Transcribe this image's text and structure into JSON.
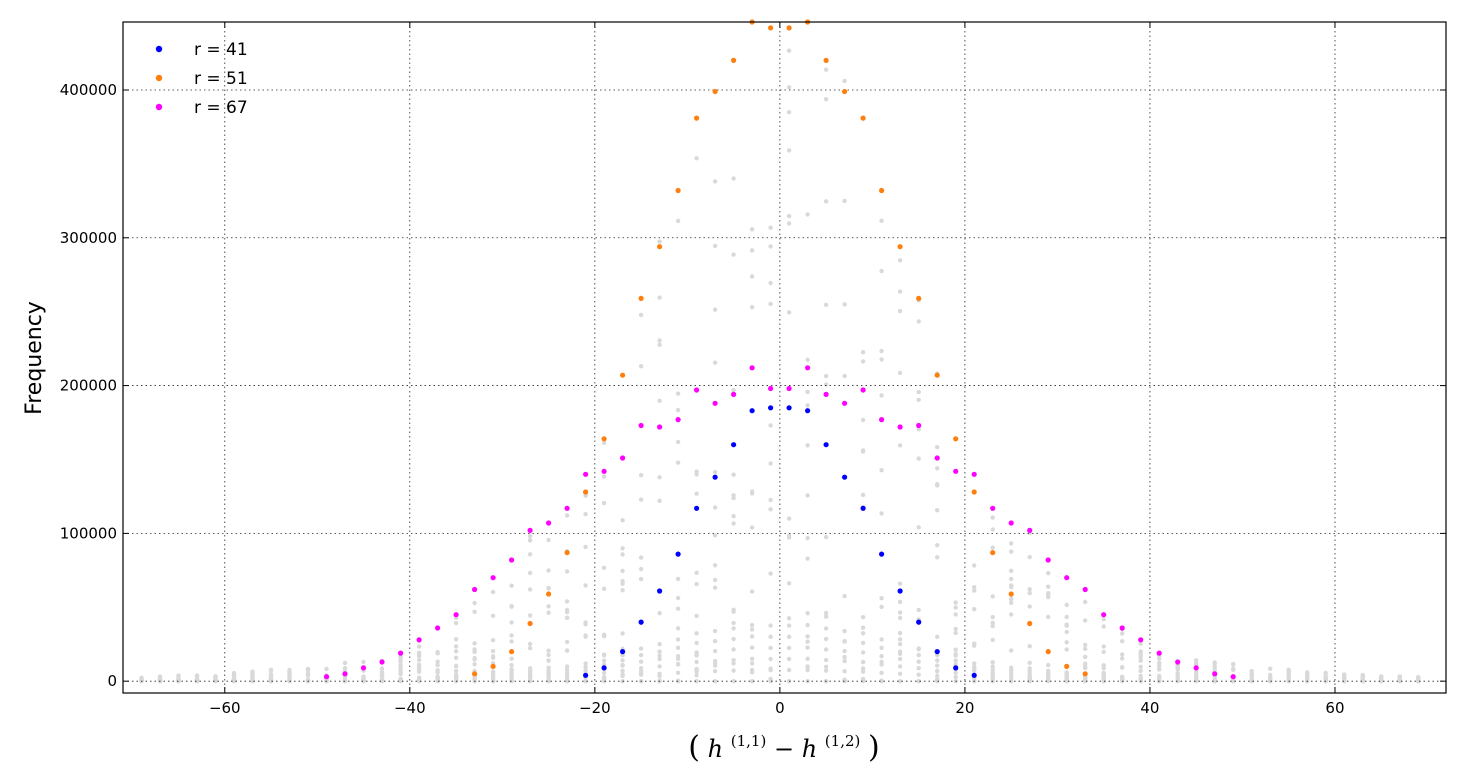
{
  "chart_data": {
    "type": "scatter",
    "title": "",
    "xlabel_parts": {
      "open": "(",
      "h11_base": "h",
      "h11_sup": "(1,1)",
      "minus": "−",
      "h12_base": "h",
      "h12_sup": "(1,2)",
      "close": ")"
    },
    "ylabel": "Frequency",
    "xlim": [
      -71,
      72
    ],
    "ylim": [
      -8000,
      446000
    ],
    "xticks": [
      -60,
      -40,
      -20,
      0,
      20,
      40,
      60
    ],
    "xtick_labels": [
      "−60",
      "−40",
      "−20",
      "0",
      "20",
      "40",
      "60"
    ],
    "yticks": [
      0,
      100000,
      200000,
      300000,
      400000
    ],
    "ytick_labels": [
      "0",
      "100000",
      "200000",
      "300000",
      "400000"
    ],
    "grid": true,
    "legend": {
      "position": "top-left"
    },
    "background_series": {
      "color": "#d9d9d9",
      "x_range": [
        -69,
        69
      ],
      "step": 2,
      "note_points_per_x": 18
    },
    "series": [
      {
        "name": "r = 41",
        "color": "#0000ff",
        "x": [
          -21,
          -19,
          -17,
          -15,
          -13,
          -11,
          -9,
          -7,
          -5,
          -3,
          -1,
          1,
          3,
          5,
          7,
          9,
          11,
          13,
          15,
          17,
          19,
          21
        ],
        "y": [
          4000,
          9000,
          20000,
          40000,
          61000,
          86000,
          117000,
          138000,
          160000,
          183000,
          185000,
          185000,
          183000,
          160000,
          138000,
          117000,
          86000,
          61000,
          40000,
          20000,
          9000,
          4000
        ]
      },
      {
        "name": "r = 51",
        "color": "#ff7f0e",
        "x": [
          -33,
          -31,
          -29,
          -27,
          -25,
          -23,
          -21,
          -19,
          -17,
          -15,
          -13,
          -11,
          -9,
          -7,
          -5,
          -3,
          -1,
          1,
          3,
          5,
          7,
          9,
          11,
          13,
          15,
          17,
          19,
          21,
          23,
          25,
          27,
          29,
          31,
          33
        ],
        "y": [
          5000,
          10000,
          20000,
          39000,
          59000,
          87000,
          128000,
          164000,
          207000,
          259000,
          294000,
          332000,
          381000,
          399000,
          420000,
          446000,
          442000,
          442000,
          446000,
          420000,
          399000,
          381000,
          332000,
          294000,
          259000,
          207000,
          164000,
          128000,
          87000,
          59000,
          39000,
          20000,
          10000,
          5000
        ]
      },
      {
        "name": "r = 67",
        "color": "#ff00ff",
        "x": [
          -49,
          -47,
          -45,
          -43,
          -41,
          -39,
          -37,
          -35,
          -33,
          -31,
          -29,
          -27,
          -25,
          -23,
          -21,
          -19,
          -17,
          -15,
          -13,
          -11,
          -9,
          -7,
          -5,
          -3,
          -1,
          1,
          3,
          5,
          7,
          9,
          11,
          13,
          15,
          17,
          19,
          21,
          23,
          25,
          27,
          29,
          31,
          33,
          35,
          37,
          39,
          41,
          43,
          45,
          47,
          49
        ],
        "y": [
          3000,
          5000,
          9000,
          13000,
          19000,
          28000,
          36000,
          45000,
          62000,
          70000,
          82000,
          102000,
          107000,
          117000,
          140000,
          142000,
          151000,
          173000,
          172000,
          177000,
          197000,
          188000,
          194000,
          212000,
          198000,
          198000,
          212000,
          194000,
          188000,
          197000,
          177000,
          172000,
          173000,
          151000,
          142000,
          140000,
          117000,
          107000,
          102000,
          82000,
          70000,
          62000,
          45000,
          36000,
          28000,
          19000,
          13000,
          9000,
          5000,
          3000
        ]
      }
    ]
  }
}
